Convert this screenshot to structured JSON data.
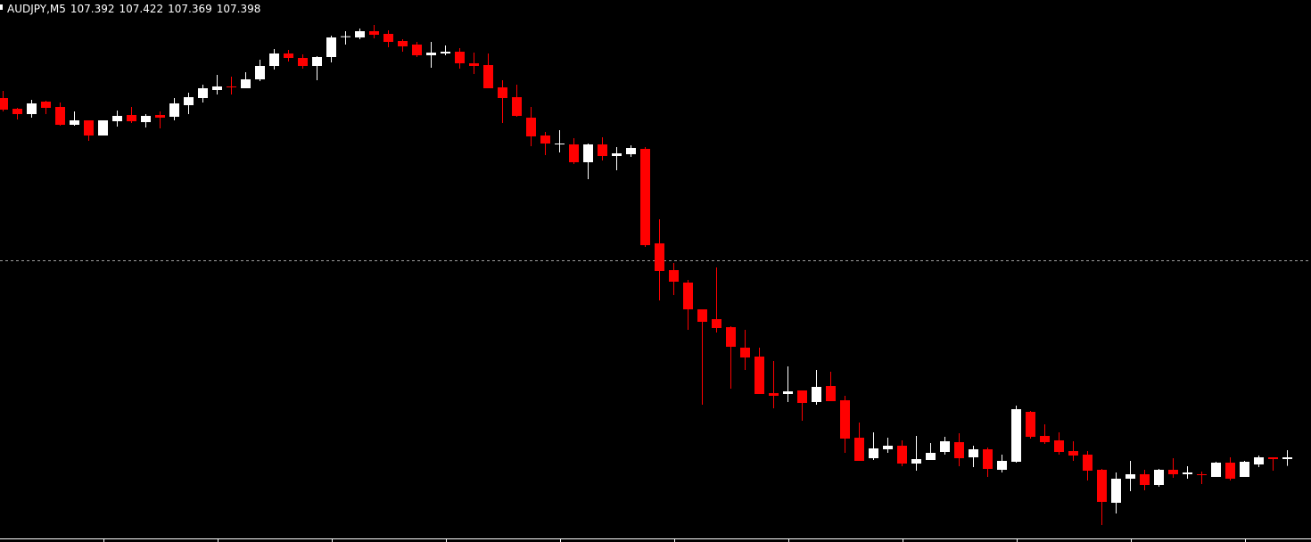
{
  "header": {
    "symbol_timeframe": "AUDJPY,M5",
    "open": "107.392",
    "high": "107.422",
    "low": "107.369",
    "close": "107.398"
  },
  "colors": {
    "background": "#000000",
    "bull": "#ffffff",
    "bear": "#ff0000",
    "axis": "#ffffff",
    "dashed_level": "#a0a0a0"
  },
  "chart_data": {
    "type": "candlestick",
    "title": "AUDJPY,M5",
    "ylim": [
      107.125,
      108.937
    ],
    "grid": false,
    "dashed_level": 108.061,
    "ohlc": [
      [
        108.607,
        108.631,
        108.562,
        108.568
      ],
      [
        108.571,
        108.574,
        108.535,
        108.553
      ],
      [
        108.553,
        108.601,
        108.541,
        108.589
      ],
      [
        108.595,
        108.598,
        108.553,
        108.574
      ],
      [
        108.577,
        108.592,
        108.514,
        108.517
      ],
      [
        108.517,
        108.562,
        108.514,
        108.532
      ],
      [
        108.532,
        108.532,
        108.463,
        108.481
      ],
      [
        108.481,
        108.532,
        108.481,
        108.532
      ],
      [
        108.529,
        108.565,
        108.511,
        108.547
      ],
      [
        108.55,
        108.577,
        108.523,
        108.529
      ],
      [
        108.526,
        108.553,
        108.508,
        108.547
      ],
      [
        108.55,
        108.562,
        108.505,
        108.541
      ],
      [
        108.544,
        108.607,
        108.532,
        108.589
      ],
      [
        108.583,
        108.625,
        108.553,
        108.61
      ],
      [
        108.607,
        108.652,
        108.592,
        108.64
      ],
      [
        108.634,
        108.685,
        108.619,
        108.646
      ],
      [
        108.646,
        108.679,
        108.619,
        108.643
      ],
      [
        108.64,
        108.694,
        108.64,
        108.67
      ],
      [
        108.67,
        108.736,
        108.664,
        108.715
      ],
      [
        108.715,
        108.772,
        108.703,
        108.757
      ],
      [
        108.757,
        108.769,
        108.73,
        108.742
      ],
      [
        108.742,
        108.754,
        108.706,
        108.715
      ],
      [
        108.715,
        108.748,
        108.667,
        108.745
      ],
      [
        108.745,
        108.817,
        108.727,
        108.811
      ],
      [
        108.814,
        108.832,
        108.787,
        108.815
      ],
      [
        108.811,
        108.841,
        108.805,
        108.832
      ],
      [
        108.832,
        108.853,
        108.808,
        108.82
      ],
      [
        108.823,
        108.835,
        108.778,
        108.796
      ],
      [
        108.799,
        108.805,
        108.763,
        108.781
      ],
      [
        108.787,
        108.796,
        108.745,
        108.751
      ],
      [
        108.751,
        108.796,
        108.709,
        108.76
      ],
      [
        108.757,
        108.784,
        108.751,
        108.763
      ],
      [
        108.763,
        108.775,
        108.706,
        108.724
      ],
      [
        108.724,
        108.76,
        108.688,
        108.715
      ],
      [
        108.718,
        108.757,
        108.64,
        108.64
      ],
      [
        108.643,
        108.667,
        108.523,
        108.607
      ],
      [
        108.61,
        108.652,
        108.544,
        108.547
      ],
      [
        108.541,
        108.577,
        108.445,
        108.478
      ],
      [
        108.481,
        108.493,
        108.415,
        108.454
      ],
      [
        108.451,
        108.499,
        108.424,
        108.454
      ],
      [
        108.451,
        108.472,
        108.385,
        108.391
      ],
      [
        108.391,
        108.454,
        108.334,
        108.451
      ],
      [
        108.451,
        108.475,
        108.397,
        108.412
      ],
      [
        108.412,
        108.442,
        108.364,
        108.421
      ],
      [
        108.418,
        108.448,
        108.409,
        108.439
      ],
      [
        108.436,
        108.442,
        108.106,
        108.112
      ],
      [
        108.118,
        108.199,
        107.926,
        108.025
      ],
      [
        108.028,
        108.052,
        107.944,
        107.989
      ],
      [
        107.986,
        107.995,
        107.827,
        107.896
      ],
      [
        107.896,
        107.896,
        107.575,
        107.854
      ],
      [
        107.863,
        108.037,
        107.818,
        107.833
      ],
      [
        107.836,
        107.839,
        107.629,
        107.77
      ],
      [
        107.767,
        107.827,
        107.692,
        107.734
      ],
      [
        107.737,
        107.767,
        107.611,
        107.611
      ],
      [
        107.614,
        107.722,
        107.563,
        107.605
      ],
      [
        107.611,
        107.704,
        107.584,
        107.62
      ],
      [
        107.623,
        107.623,
        107.521,
        107.581
      ],
      [
        107.584,
        107.692,
        107.575,
        107.635
      ],
      [
        107.638,
        107.686,
        107.587,
        107.587
      ],
      [
        107.59,
        107.605,
        107.413,
        107.461
      ],
      [
        107.464,
        107.515,
        107.386,
        107.386
      ],
      [
        107.395,
        107.482,
        107.389,
        107.428
      ],
      [
        107.425,
        107.464,
        107.413,
        107.437
      ],
      [
        107.437,
        107.455,
        107.368,
        107.377
      ],
      [
        107.377,
        107.47,
        107.353,
        107.392
      ],
      [
        107.389,
        107.446,
        107.389,
        107.413
      ],
      [
        107.416,
        107.467,
        107.407,
        107.452
      ],
      [
        107.449,
        107.479,
        107.368,
        107.395
      ],
      [
        107.398,
        107.437,
        107.365,
        107.425
      ],
      [
        107.425,
        107.431,
        107.332,
        107.359
      ],
      [
        107.356,
        107.407,
        107.347,
        107.386
      ],
      [
        107.383,
        107.572,
        107.38,
        107.56
      ],
      [
        107.551,
        107.554,
        107.461,
        107.467
      ],
      [
        107.47,
        107.509,
        107.443,
        107.449
      ],
      [
        107.455,
        107.482,
        107.407,
        107.416
      ],
      [
        107.419,
        107.452,
        107.386,
        107.404
      ],
      [
        107.407,
        107.419,
        107.32,
        107.353
      ],
      [
        107.356,
        107.359,
        107.17,
        107.248
      ],
      [
        107.245,
        107.347,
        107.209,
        107.326
      ],
      [
        107.326,
        107.386,
        107.284,
        107.341
      ],
      [
        107.341,
        107.356,
        107.287,
        107.305
      ],
      [
        107.305,
        107.359,
        107.299,
        107.356
      ],
      [
        107.356,
        107.395,
        107.329,
        107.341
      ],
      [
        107.341,
        107.368,
        107.326,
        107.347
      ],
      [
        107.341,
        107.35,
        107.308,
        107.338
      ],
      [
        107.332,
        107.383,
        107.332,
        107.38
      ],
      [
        107.38,
        107.398,
        107.32,
        107.326
      ],
      [
        107.332,
        107.386,
        107.332,
        107.383
      ],
      [
        107.374,
        107.404,
        107.365,
        107.398
      ],
      [
        107.398,
        107.398,
        107.353,
        107.392
      ],
      [
        107.392,
        107.422,
        107.369,
        107.398
      ]
    ]
  }
}
